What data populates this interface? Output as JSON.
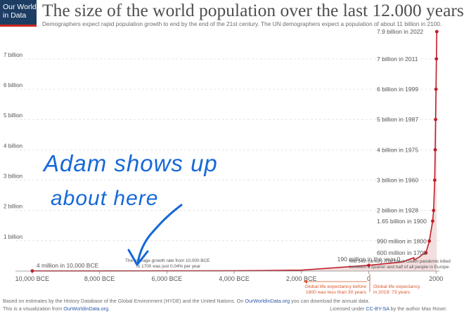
{
  "logo": {
    "line1": "Our World",
    "line2": "in Data"
  },
  "title": "The size of the world population over the last 12.000 years",
  "subtitle": "Demographers expect rapid population growth to end by the end of the 21st century. The UN demographers expect a population of about 11 billion in 2100.",
  "colors": {
    "series": "#c01e2a",
    "area": "#f3dede",
    "grid": "#dddddd",
    "text": "#555555",
    "annotation_red": "#d9572b",
    "ink": "#1668d9"
  },
  "chart_data": {
    "type": "area",
    "title": "The size of the world population over the last 12.000 years",
    "y_axis": {
      "ticks": [
        "1 billion",
        "2 billion",
        "3 billion",
        "4 billion",
        "5 billion",
        "6 billion",
        "7 billion"
      ],
      "tick_values": [
        1,
        2,
        3,
        4,
        5,
        6,
        7
      ],
      "ylim": [
        0,
        7.9
      ],
      "unit": "billion"
    },
    "x_axis": {
      "ticks": [
        "10,000 BCE",
        "8,000 BCE",
        "6,000 BCE",
        "4,000 BCE",
        "2,000 BCE",
        "0",
        "2000"
      ],
      "tick_values": [
        -10000,
        -8000,
        -6000,
        -4000,
        -2000,
        0,
        2000
      ],
      "xlim": [
        -10500,
        2100
      ]
    },
    "grid": true,
    "series": [
      {
        "x": [
          -10000,
          -8000,
          -6000,
          -4000,
          -2000,
          0,
          1000,
          1340,
          1350,
          1500,
          1600,
          1700,
          1800,
          1900,
          1928,
          1960,
          1975,
          1987,
          1999,
          2011,
          2022
        ],
        "values": [
          0.004,
          0.005,
          0.007,
          0.01,
          0.03,
          0.19,
          0.3,
          0.44,
          0.37,
          0.46,
          0.55,
          0.6,
          0.99,
          1.65,
          2.0,
          3.0,
          4.0,
          5.0,
          6.0,
          7.0,
          7.9
        ]
      }
    ],
    "point_labels": [
      {
        "x": -10000,
        "y": 0.004,
        "text": "4 million in 10,000 BCE"
      },
      {
        "x": 0,
        "y": 0.19,
        "text": "190 million in the year 0"
      },
      {
        "x": 1700,
        "y": 0.6,
        "text": "600 million in 1700"
      },
      {
        "x": 1800,
        "y": 0.99,
        "text": "990 million in 1800"
      },
      {
        "x": 1900,
        "y": 1.65,
        "text": "1.65 billion in 1900"
      },
      {
        "x": 1928,
        "y": 2.0,
        "text": "2 billion in 1928"
      },
      {
        "x": 1960,
        "y": 3.0,
        "text": "3 billion in 1960"
      },
      {
        "x": 1975,
        "y": 4.0,
        "text": "4 billion in 1975"
      },
      {
        "x": 1987,
        "y": 5.0,
        "text": "5 billion in 1987"
      },
      {
        "x": 1999,
        "y": 6.0,
        "text": "6 billion in 1999"
      },
      {
        "x": 2011,
        "y": 7.0,
        "text": "7 billion in 2011"
      },
      {
        "x": 2022,
        "y": 7.9,
        "text": "7.9 billion in 2022"
      }
    ],
    "annotations": {
      "growth_rate": [
        "The average growth rate from 10,000 BCE",
        "to 1700 was just 0.04% per year"
      ],
      "black_death": [
        "Mid 14th century: The Black Death pandemic killed",
        "between a quarter and half of all people in Europe."
      ],
      "life_expectancy_1800": [
        "Global life expectancy before",
        "1800 was less than 30 years"
      ],
      "life_expectancy_2019": [
        "Global life expectancy",
        "in 2019: 73 years"
      ]
    },
    "handwriting": [
      "Adam shows up",
      "about here"
    ]
  },
  "footer": {
    "line1_a": "Based on estimates by the History Database of the Global Environment (HYDE) and the United Nations. On ",
    "line1_link": "OurWorldinData.org",
    "line1_b": " you can download the annual data.",
    "line2_a": "This is a visualization from ",
    "line2_link": "OurWorldinData.org",
    "line2_b": ".",
    "right_a": "Licensed under ",
    "right_link": "CC-BY-SA",
    "right_b": " by the author Max Roser."
  }
}
